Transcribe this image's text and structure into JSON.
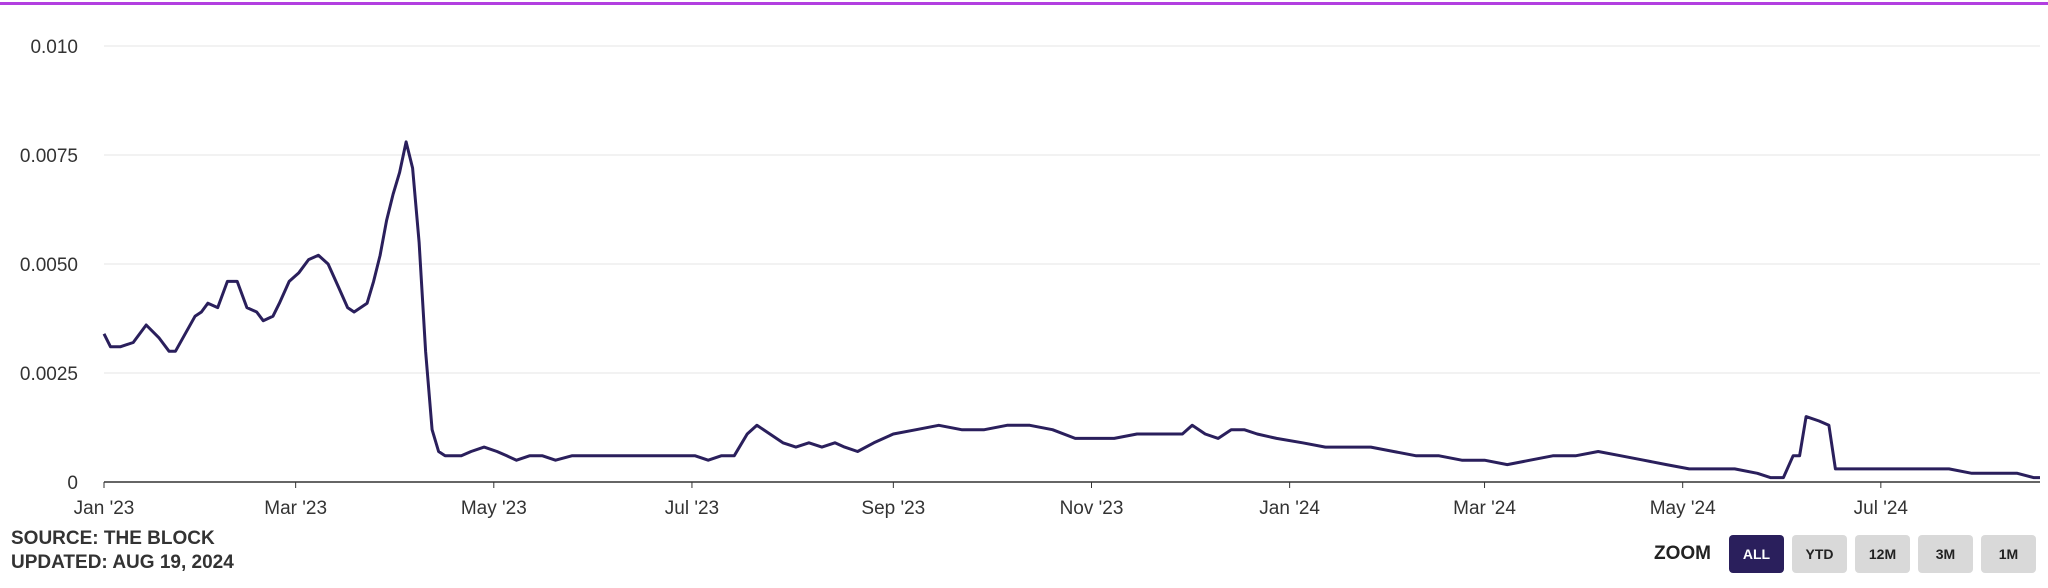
{
  "colors": {
    "accent": "#b23fe0",
    "series": "#2a1f5c",
    "grid": "#e6e6e6",
    "axis": "#333333"
  },
  "footer": {
    "source": "SOURCE: THE BLOCK",
    "updated": "UPDATED: AUG 19, 2024"
  },
  "zoom": {
    "label": "ZOOM",
    "buttons": [
      "ALL",
      "YTD",
      "12M",
      "3M",
      "1M"
    ],
    "active": "ALL"
  },
  "chart_data": {
    "type": "line",
    "title": "",
    "xlabel": "",
    "ylabel": "",
    "x_tick_labels": [
      "Jan '23",
      "Mar '23",
      "May '23",
      "Jul '23",
      "Sep '23",
      "Nov '23",
      "Jan '24",
      "Mar '24",
      "May '24",
      "Jul '24"
    ],
    "y_tick_labels": [
      "0",
      "0.0025",
      "0.0050",
      "0.0075",
      "0.010"
    ],
    "ylim": [
      0,
      0.01
    ],
    "xlim": [
      "2023-01-01",
      "2024-08-19"
    ],
    "grid": true,
    "legend": "none",
    "series": [
      {
        "x": [
          "2023-01-01",
          "2023-01-03",
          "2023-01-06",
          "2023-01-10",
          "2023-01-14",
          "2023-01-18",
          "2023-01-21",
          "2023-01-23",
          "2023-01-26",
          "2023-01-29",
          "2023-01-31",
          "2023-02-02",
          "2023-02-05",
          "2023-02-08",
          "2023-02-11",
          "2023-02-14",
          "2023-02-17",
          "2023-02-19",
          "2023-02-22",
          "2023-02-24",
          "2023-02-27",
          "2023-03-02",
          "2023-03-05",
          "2023-03-08",
          "2023-03-11",
          "2023-03-14",
          "2023-03-17",
          "2023-03-19",
          "2023-03-21",
          "2023-03-23",
          "2023-03-25",
          "2023-03-27",
          "2023-03-29",
          "2023-03-31",
          "2023-04-02",
          "2023-04-04",
          "2023-04-06",
          "2023-04-08",
          "2023-04-10",
          "2023-04-12",
          "2023-04-14",
          "2023-04-16",
          "2023-04-18",
          "2023-04-21",
          "2023-04-24",
          "2023-04-28",
          "2023-05-02",
          "2023-05-05",
          "2023-05-08",
          "2023-05-12",
          "2023-05-16",
          "2023-05-20",
          "2023-05-25",
          "2023-06-01",
          "2023-06-08",
          "2023-06-15",
          "2023-06-22",
          "2023-06-29",
          "2023-07-02",
          "2023-07-06",
          "2023-07-10",
          "2023-07-14",
          "2023-07-18",
          "2023-07-21",
          "2023-07-25",
          "2023-07-29",
          "2023-08-02",
          "2023-08-06",
          "2023-08-10",
          "2023-08-14",
          "2023-08-17",
          "2023-08-21",
          "2023-08-26",
          "2023-09-01",
          "2023-09-08",
          "2023-09-15",
          "2023-09-22",
          "2023-09-29",
          "2023-10-06",
          "2023-10-13",
          "2023-10-20",
          "2023-10-27",
          "2023-11-01",
          "2023-11-08",
          "2023-11-15",
          "2023-11-22",
          "2023-11-29",
          "2023-12-02",
          "2023-12-06",
          "2023-12-10",
          "2023-12-14",
          "2023-12-18",
          "2023-12-22",
          "2023-12-28",
          "2024-01-05",
          "2024-01-12",
          "2024-01-19",
          "2024-01-26",
          "2024-02-02",
          "2024-02-09",
          "2024-02-16",
          "2024-02-23",
          "2024-03-01",
          "2024-03-08",
          "2024-03-15",
          "2024-03-22",
          "2024-03-29",
          "2024-04-05",
          "2024-04-12",
          "2024-04-19",
          "2024-04-26",
          "2024-05-03",
          "2024-05-10",
          "2024-05-17",
          "2024-05-24",
          "2024-05-28",
          "2024-06-01",
          "2024-06-04",
          "2024-06-06",
          "2024-06-08",
          "2024-06-12",
          "2024-06-15",
          "2024-06-17",
          "2024-06-24",
          "2024-07-01",
          "2024-07-08",
          "2024-07-15",
          "2024-07-22",
          "2024-07-29",
          "2024-08-05",
          "2024-08-12",
          "2024-08-17",
          "2024-08-19"
        ],
        "y": [
          0.0034,
          0.0031,
          0.0031,
          0.0032,
          0.0036,
          0.0033,
          0.003,
          0.003,
          0.0034,
          0.0038,
          0.0039,
          0.0041,
          0.004,
          0.0046,
          0.0046,
          0.004,
          0.0039,
          0.0037,
          0.0038,
          0.0041,
          0.0046,
          0.0048,
          0.0051,
          0.0052,
          0.005,
          0.0045,
          0.004,
          0.0039,
          0.004,
          0.0041,
          0.0046,
          0.0052,
          0.006,
          0.0066,
          0.0071,
          0.0078,
          0.0072,
          0.0055,
          0.003,
          0.0012,
          0.0007,
          0.0006,
          0.0006,
          0.0006,
          0.0007,
          0.0008,
          0.0007,
          0.0006,
          0.0005,
          0.0006,
          0.0006,
          0.0005,
          0.0006,
          0.0006,
          0.0006,
          0.0006,
          0.0006,
          0.0006,
          0.0006,
          0.0005,
          0.0006,
          0.0006,
          0.0011,
          0.0013,
          0.0011,
          0.0009,
          0.0008,
          0.0009,
          0.0008,
          0.0009,
          0.0008,
          0.0007,
          0.0009,
          0.0011,
          0.0012,
          0.0013,
          0.0012,
          0.0012,
          0.0013,
          0.0013,
          0.0012,
          0.001,
          0.001,
          0.001,
          0.0011,
          0.0011,
          0.0011,
          0.0013,
          0.0011,
          0.001,
          0.0012,
          0.0012,
          0.0011,
          0.001,
          0.0009,
          0.0008,
          0.0008,
          0.0008,
          0.0007,
          0.0006,
          0.0006,
          0.0005,
          0.0005,
          0.0004,
          0.0005,
          0.0006,
          0.0006,
          0.0007,
          0.0006,
          0.0005,
          0.0004,
          0.0003,
          0.0003,
          0.0003,
          0.0002,
          0.0001,
          0.0001,
          0.0006,
          0.0006,
          0.0015,
          0.0014,
          0.0013,
          0.0003,
          0.0003,
          0.0003,
          0.0003,
          0.0003,
          0.0003,
          0.0002,
          0.0002,
          0.0002,
          0.0001,
          0.0001
        ]
      }
    ]
  }
}
